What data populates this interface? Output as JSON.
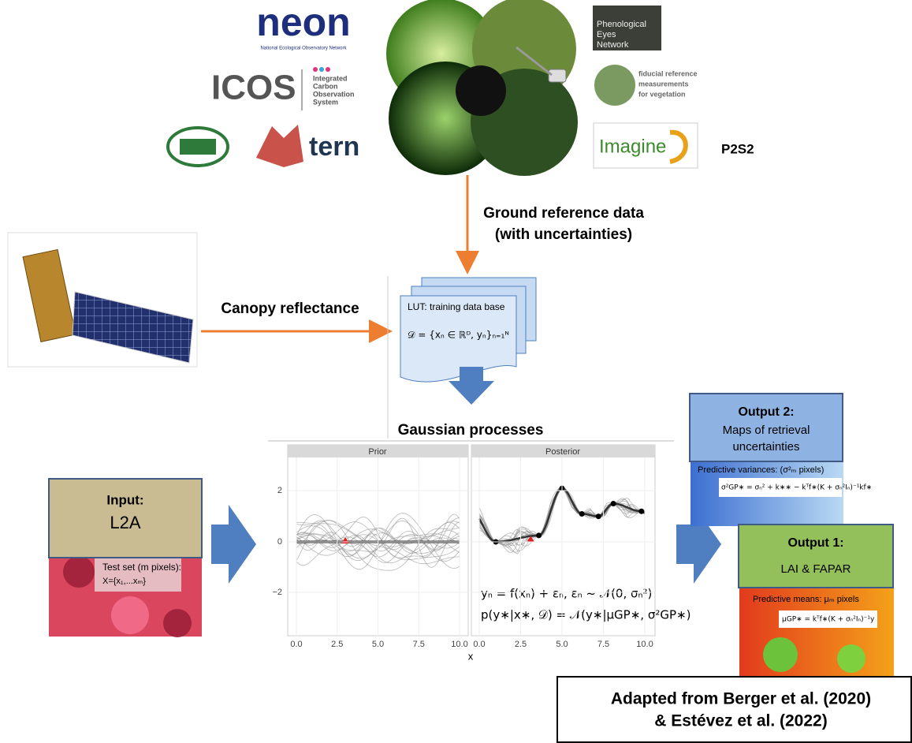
{
  "logos": {
    "neon": "neon",
    "neon_sub": "National Ecological Observatory Network",
    "icos": "ICOS",
    "icos_sub": [
      "Integrated",
      "Carbon",
      "Observation",
      "System"
    ],
    "tern": "tern",
    "pen": [
      "Phenological",
      "Eyes",
      "Network"
    ],
    "frm4veg": [
      "fiducial reference",
      "measurements",
      "for vegetation"
    ],
    "imagine": "Imagine",
    "p2s2": "P2S2"
  },
  "ground_label": [
    "Ground reference data",
    "(with uncertainties)"
  ],
  "canopy_label": "Canopy reflectance",
  "lut": {
    "title": "LUT: training data base",
    "formula": "𝒟 = {xₙ ∈ ℝᴰ, yₙ}ₙ₌₁ᴺ"
  },
  "gp": {
    "title": "Gaussian processes",
    "panels": [
      "Prior",
      "Posterior"
    ],
    "yticks": [
      "2",
      "0",
      "−2"
    ],
    "xticks": [
      "0.0",
      "2.5",
      "5.0",
      "7.5",
      "10.0"
    ],
    "xlabel": "x",
    "equations": [
      "yₙ = f(xₙ) + εₙ,  εₙ ~ 𝒩(0, σₙ²)",
      "p(y∗|x∗, 𝒟) = 𝒩(y∗|μGP∗, σ²GP∗)"
    ]
  },
  "input": {
    "title": "Input:",
    "name": "L2A",
    "caption": [
      "Test set (m pixels):",
      "X={x₁,...xₘ}"
    ]
  },
  "output2": {
    "title": "Output 2:",
    "lines": [
      "Maps of retrieval",
      "uncertainties"
    ],
    "caption": "Predictive variances: (σ²ₘ pixels)",
    "formula": "σ²GP∗ = σₙ² + k∗∗ − kᵀf∗(K + σₙ²Iₙ)⁻¹kf∗"
  },
  "output1": {
    "title": "Output 1:",
    "text": "LAI & FAPAR",
    "caption": "Predictive means: μₘ pixels",
    "formula": "μGP∗ = kᵀf∗(K + σₙ²Iₙ)⁻¹y"
  },
  "credit": [
    "Adapted from Berger et al. (2020)",
    "& Estévez et al. (2022)"
  ]
}
